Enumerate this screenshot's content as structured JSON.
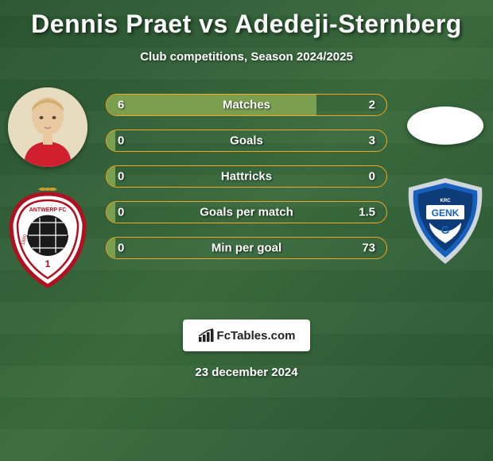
{
  "title": "Dennis Praet vs Adedeji-Sternberg",
  "subtitle": "Club competitions, Season 2024/2025",
  "date": "23 december 2024",
  "footer_brand": "FcTables.com",
  "colors": {
    "bar_border": "#f5a623",
    "bar_fill": "#7aa04f",
    "text": "#ffffff"
  },
  "bars": [
    {
      "label": "Matches",
      "left": "6",
      "right": "2",
      "fill_pct": 75
    },
    {
      "label": "Goals",
      "left": "0",
      "right": "3",
      "fill_pct": 3
    },
    {
      "label": "Hattricks",
      "left": "0",
      "right": "0",
      "fill_pct": 3
    },
    {
      "label": "Goals per match",
      "left": "0",
      "right": "1.5",
      "fill_pct": 3
    },
    {
      "label": "Min per goal",
      "left": "0",
      "right": "73",
      "fill_pct": 3
    }
  ],
  "left_player": {
    "name": "Dennis Praet",
    "club": "Royal Antwerp"
  },
  "right_player": {
    "name": "Adedeji-Sternberg",
    "club": "KRC Genk"
  }
}
